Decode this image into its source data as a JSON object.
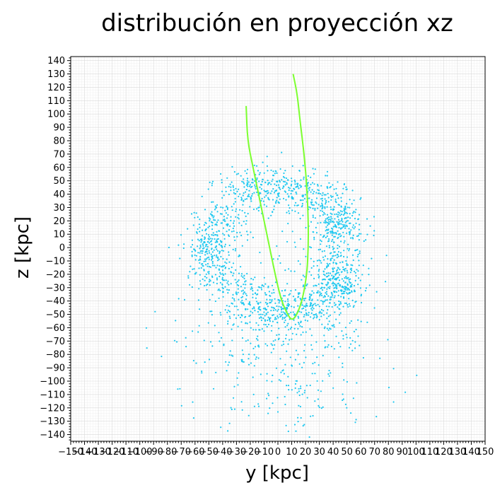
{
  "chart_data": {
    "type": "scatter",
    "title": "distribución en proyección xz",
    "xlabel": "y [kpc]",
    "ylabel": "z [kpc]",
    "xlim": [
      -150,
      150
    ],
    "ylim": [
      -145,
      143
    ],
    "x_major_step": 10,
    "y_major_step": 10,
    "minor_per_major": 5,
    "grid": true,
    "colors": {
      "points": "#1ec8f0",
      "orbit": "#7cff2f"
    },
    "point_cloud": {
      "seed": 7,
      "shell_radius_x": 46,
      "shell_radius_y": 46,
      "center": [
        0,
        0
      ],
      "clusters": [
        {
          "center": [
            45,
            -30
          ],
          "sigma": [
            8,
            10
          ],
          "count": 180
        },
        {
          "center": [
            45,
            20
          ],
          "sigma": [
            8,
            10
          ],
          "count": 150
        },
        {
          "center": [
            -50,
            0
          ],
          "sigma": [
            7,
            14
          ],
          "count": 130
        },
        {
          "center": [
            0,
            -50
          ],
          "sigma": [
            20,
            6
          ],
          "count": 120
        },
        {
          "center": [
            0,
            45
          ],
          "sigma": [
            22,
            6
          ],
          "count": 110
        }
      ],
      "shell_count": 900,
      "lower_halo": {
        "center": [
          0,
          -90
        ],
        "sigma": [
          40,
          25
        ],
        "count": 260
      },
      "scatter_count": 300
    },
    "orbit": {
      "name": "",
      "points": [
        [
          -23,
          106
        ],
        [
          -22,
          80
        ],
        [
          -18,
          60
        ],
        [
          -14,
          40
        ],
        [
          -10,
          20
        ],
        [
          -6,
          0
        ],
        [
          -2,
          -20
        ],
        [
          2,
          -38
        ],
        [
          6,
          -48
        ],
        [
          10,
          -55
        ],
        [
          14,
          -50
        ],
        [
          18,
          -38
        ],
        [
          21,
          -20
        ],
        [
          22,
          0
        ],
        [
          22,
          20
        ],
        [
          21,
          45
        ],
        [
          19,
          70
        ],
        [
          16,
          95
        ],
        [
          14,
          115
        ],
        [
          11,
          130
        ]
      ]
    }
  }
}
